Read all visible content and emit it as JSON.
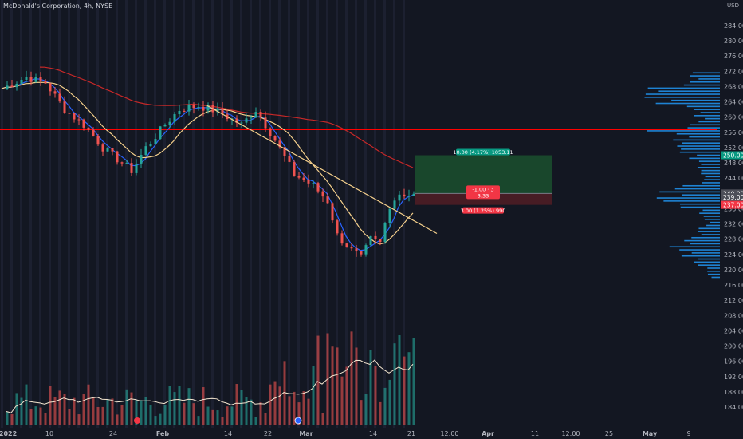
{
  "symbol": {
    "title": "McDonald's Corporation, 4h, NYSE"
  },
  "colors": {
    "background": "#131722",
    "up": "#26a69a",
    "down": "#ef5350",
    "ema_fast": "#2962ff",
    "ma_mid": "#f5d08c",
    "ma_slow": "#c62828",
    "level_line": "#ff0000",
    "profit_zone": "#1b4d2e",
    "loss_zone": "#4a1c25",
    "volume_profile": "#2196f3",
    "volume_ma": "#f5e6d0"
  },
  "chart_data": {
    "type": "candlestick",
    "currency": "USD",
    "ylim": [
      181,
      286
    ],
    "y_ticks": [
      184,
      188,
      192,
      196,
      200,
      204,
      208,
      212,
      216,
      220,
      224,
      228,
      232,
      236,
      240,
      244,
      248,
      252,
      256,
      260,
      264,
      268,
      272,
      276,
      280,
      284
    ],
    "x_ticks": [
      "2022",
      "10",
      "24",
      "Feb",
      "14",
      "22",
      "Mar",
      "14",
      "21",
      "12:00",
      "Apr",
      "11",
      "12:00",
      "25",
      "May",
      "9"
    ],
    "price_path": [
      [
        0,
        267.5
      ],
      [
        5,
        270.5
      ],
      [
        9,
        269
      ],
      [
        13,
        262
      ],
      [
        17,
        258
      ],
      [
        21,
        252
      ],
      [
        25,
        248
      ],
      [
        27,
        246
      ],
      [
        30,
        252
      ],
      [
        34,
        258
      ],
      [
        37,
        262
      ],
      [
        41,
        263
      ],
      [
        45,
        261.5
      ],
      [
        50,
        258
      ],
      [
        53,
        262
      ],
      [
        57,
        254
      ],
      [
        61,
        245
      ],
      [
        65,
        242
      ],
      [
        68,
        238
      ],
      [
        70,
        229
      ],
      [
        73,
        225
      ],
      [
        75,
        223
      ],
      [
        77,
        228
      ],
      [
        79,
        227
      ],
      [
        81,
        237
      ],
      [
        83,
        240
      ],
      [
        86,
        239.5
      ]
    ],
    "horizontal_level": 256.7,
    "trendline": {
      "start": [
        43,
        263
      ],
      "end": [
        91,
        229.5
      ]
    },
    "position": {
      "entry": 240.0,
      "target": 250.0,
      "stop": 237.0,
      "target_label": "10.00 (4.17%) 1053.11",
      "risk_label": "-1.00 · 3",
      "ratio_label": "3.33",
      "stop_label": "3.00 (1.25%) 990"
    },
    "price_tags": [
      {
        "value": 250.0,
        "text": "250.00",
        "color": "#089981"
      },
      {
        "value": 240.0,
        "text": "240.00",
        "color": "#4d4f58"
      },
      {
        "value": 239.0,
        "text": "239.00",
        "color": "#4d4f58"
      },
      {
        "value": 237.0,
        "text": "237.00",
        "color": "#f23645"
      }
    ]
  }
}
